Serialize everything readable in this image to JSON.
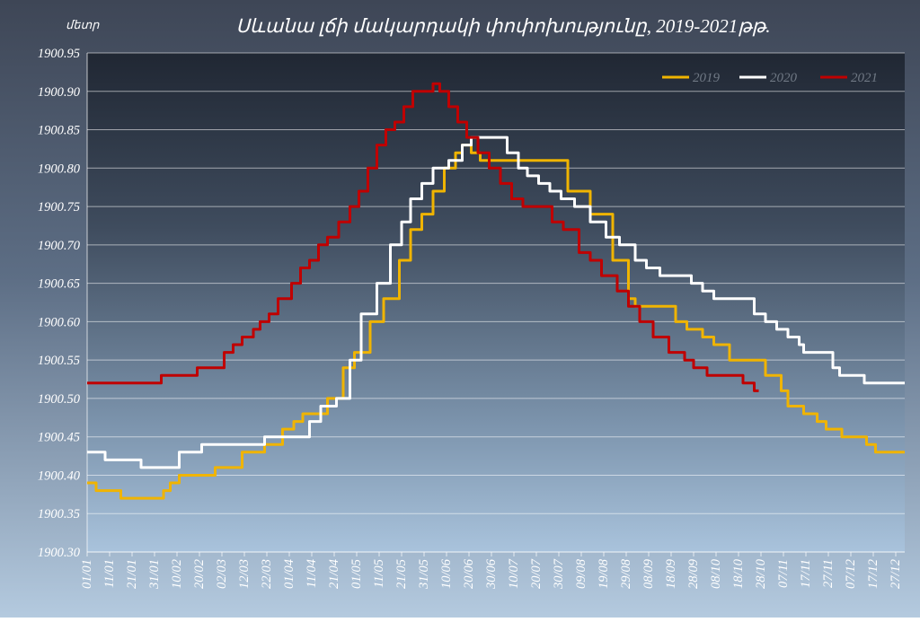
{
  "chart_data": {
    "type": "line",
    "title": "Սևանա լճի մակարդակի փոփոխությունը, 2019-2021թթ.",
    "unit_label": "մետր",
    "ylim": [
      1900.3,
      1900.95
    ],
    "y_ticks": [
      "1900.95",
      "1900.90",
      "1900.85",
      "1900.80",
      "1900.75",
      "1900.70",
      "1900.65",
      "1900.60",
      "1900.55",
      "1900.50",
      "1900.45",
      "1900.40",
      "1900.35",
      "1900.30"
    ],
    "x_ticks": [
      "01/01",
      "11/01",
      "21/01",
      "31/01",
      "10/02",
      "20/02",
      "02/03",
      "12/03",
      "22/03",
      "01/04",
      "11/04",
      "21/04",
      "01/05",
      "11/05",
      "21/05",
      "31/05",
      "10/06",
      "20/06",
      "30/06",
      "10/07",
      "20/07",
      "30/07",
      "09/08",
      "19/08",
      "29/08",
      "08/09",
      "18/09",
      "28/09",
      "08/10",
      "18/10",
      "28/10",
      "07/11",
      "17/11",
      "27/11",
      "07/12",
      "17/12",
      "27/12"
    ],
    "x_day_ticks": [
      1,
      11,
      21,
      31,
      41,
      51,
      61,
      71,
      81,
      91,
      101,
      111,
      121,
      131,
      141,
      151,
      161,
      171,
      181,
      191,
      201,
      211,
      221,
      231,
      241,
      251,
      261,
      271,
      281,
      291,
      301,
      311,
      321,
      331,
      341,
      351,
      361
    ],
    "grid": true,
    "legend": "top-right",
    "colors": {
      "2019": "#f0b400",
      "2020": "#ffffff",
      "2021": "#c00000"
    },
    "series": [
      {
        "name": "2019",
        "points": [
          [
            1,
            1900.39
          ],
          [
            5,
            1900.38
          ],
          [
            15,
            1900.38
          ],
          [
            16,
            1900.37
          ],
          [
            30,
            1900.37
          ],
          [
            35,
            1900.38
          ],
          [
            38,
            1900.39
          ],
          [
            42,
            1900.4
          ],
          [
            55,
            1900.4
          ],
          [
            58,
            1900.41
          ],
          [
            65,
            1900.41
          ],
          [
            70,
            1900.43
          ],
          [
            80,
            1900.44
          ],
          [
            88,
            1900.46
          ],
          [
            93,
            1900.47
          ],
          [
            97,
            1900.48
          ],
          [
            103,
            1900.48
          ],
          [
            108,
            1900.5
          ],
          [
            115,
            1900.54
          ],
          [
            120,
            1900.56
          ],
          [
            127,
            1900.6
          ],
          [
            133,
            1900.63
          ],
          [
            140,
            1900.68
          ],
          [
            145,
            1900.72
          ],
          [
            150,
            1900.74
          ],
          [
            155,
            1900.77
          ],
          [
            160,
            1900.8
          ],
          [
            165,
            1900.82
          ],
          [
            168,
            1900.83
          ],
          [
            172,
            1900.82
          ],
          [
            176,
            1900.81
          ],
          [
            205,
            1900.81
          ],
          [
            215,
            1900.77
          ],
          [
            225,
            1900.74
          ],
          [
            235,
            1900.68
          ],
          [
            242,
            1900.63
          ],
          [
            245,
            1900.62
          ],
          [
            260,
            1900.62
          ],
          [
            263,
            1900.6
          ],
          [
            268,
            1900.59
          ],
          [
            275,
            1900.58
          ],
          [
            280,
            1900.57
          ],
          [
            287,
            1900.55
          ],
          [
            296,
            1900.55
          ],
          [
            303,
            1900.53
          ],
          [
            310,
            1900.51
          ],
          [
            313,
            1900.49
          ],
          [
            320,
            1900.48
          ],
          [
            326,
            1900.47
          ],
          [
            330,
            1900.46
          ],
          [
            337,
            1900.45
          ],
          [
            345,
            1900.45
          ],
          [
            348,
            1900.44
          ],
          [
            352,
            1900.43
          ],
          [
            365,
            1900.43
          ]
        ]
      },
      {
        "name": "2020",
        "points": [
          [
            1,
            1900.43
          ],
          [
            8,
            1900.43
          ],
          [
            9,
            1900.42
          ],
          [
            24,
            1900.42
          ],
          [
            25,
            1900.41
          ],
          [
            38,
            1900.41
          ],
          [
            42,
            1900.43
          ],
          [
            50,
            1900.43
          ],
          [
            52,
            1900.44
          ],
          [
            78,
            1900.44
          ],
          [
            80,
            1900.45
          ],
          [
            95,
            1900.45
          ],
          [
            100,
            1900.47
          ],
          [
            105,
            1900.49
          ],
          [
            112,
            1900.5
          ],
          [
            118,
            1900.55
          ],
          [
            123,
            1900.61
          ],
          [
            130,
            1900.65
          ],
          [
            136,
            1900.7
          ],
          [
            141,
            1900.73
          ],
          [
            145,
            1900.76
          ],
          [
            150,
            1900.78
          ],
          [
            155,
            1900.8
          ],
          [
            162,
            1900.81
          ],
          [
            168,
            1900.83
          ],
          [
            172,
            1900.84
          ],
          [
            184,
            1900.84
          ],
          [
            188,
            1900.82
          ],
          [
            193,
            1900.8
          ],
          [
            197,
            1900.79
          ],
          [
            202,
            1900.78
          ],
          [
            207,
            1900.77
          ],
          [
            212,
            1900.76
          ],
          [
            218,
            1900.75
          ],
          [
            225,
            1900.73
          ],
          [
            232,
            1900.71
          ],
          [
            238,
            1900.7
          ],
          [
            245,
            1900.68
          ],
          [
            250,
            1900.67
          ],
          [
            256,
            1900.66
          ],
          [
            268,
            1900.66
          ],
          [
            270,
            1900.65
          ],
          [
            275,
            1900.64
          ],
          [
            280,
            1900.63
          ],
          [
            295,
            1900.63
          ],
          [
            298,
            1900.61
          ],
          [
            303,
            1900.6
          ],
          [
            308,
            1900.59
          ],
          [
            313,
            1900.58
          ],
          [
            318,
            1900.57
          ],
          [
            320,
            1900.56
          ],
          [
            330,
            1900.56
          ],
          [
            333,
            1900.54
          ],
          [
            336,
            1900.53
          ],
          [
            345,
            1900.53
          ],
          [
            347,
            1900.52
          ],
          [
            365,
            1900.52
          ]
        ]
      },
      {
        "name": "2021",
        "points": [
          [
            1,
            1900.52
          ],
          [
            33,
            1900.52
          ],
          [
            34,
            1900.53
          ],
          [
            48,
            1900.53
          ],
          [
            50,
            1900.54
          ],
          [
            58,
            1900.54
          ],
          [
            62,
            1900.56
          ],
          [
            66,
            1900.57
          ],
          [
            70,
            1900.58
          ],
          [
            75,
            1900.59
          ],
          [
            78,
            1900.6
          ],
          [
            82,
            1900.61
          ],
          [
            86,
            1900.63
          ],
          [
            92,
            1900.65
          ],
          [
            96,
            1900.67
          ],
          [
            100,
            1900.68
          ],
          [
            104,
            1900.7
          ],
          [
            108,
            1900.71
          ],
          [
            113,
            1900.73
          ],
          [
            118,
            1900.75
          ],
          [
            122,
            1900.77
          ],
          [
            126,
            1900.8
          ],
          [
            130,
            1900.83
          ],
          [
            134,
            1900.85
          ],
          [
            138,
            1900.86
          ],
          [
            142,
            1900.88
          ],
          [
            146,
            1900.9
          ],
          [
            152,
            1900.9
          ],
          [
            155,
            1900.91
          ],
          [
            158,
            1900.9
          ],
          [
            162,
            1900.88
          ],
          [
            166,
            1900.86
          ],
          [
            170,
            1900.84
          ],
          [
            175,
            1900.82
          ],
          [
            180,
            1900.8
          ],
          [
            185,
            1900.78
          ],
          [
            190,
            1900.76
          ],
          [
            195,
            1900.75
          ],
          [
            203,
            1900.75
          ],
          [
            208,
            1900.73
          ],
          [
            213,
            1900.72
          ],
          [
            220,
            1900.69
          ],
          [
            225,
            1900.68
          ],
          [
            230,
            1900.66
          ],
          [
            237,
            1900.64
          ],
          [
            242,
            1900.62
          ],
          [
            247,
            1900.6
          ],
          [
            253,
            1900.58
          ],
          [
            260,
            1900.56
          ],
          [
            267,
            1900.55
          ],
          [
            271,
            1900.54
          ],
          [
            277,
            1900.53
          ],
          [
            290,
            1900.53
          ],
          [
            293,
            1900.52
          ],
          [
            298,
            1900.51
          ],
          [
            300,
            1900.51
          ]
        ]
      }
    ]
  }
}
